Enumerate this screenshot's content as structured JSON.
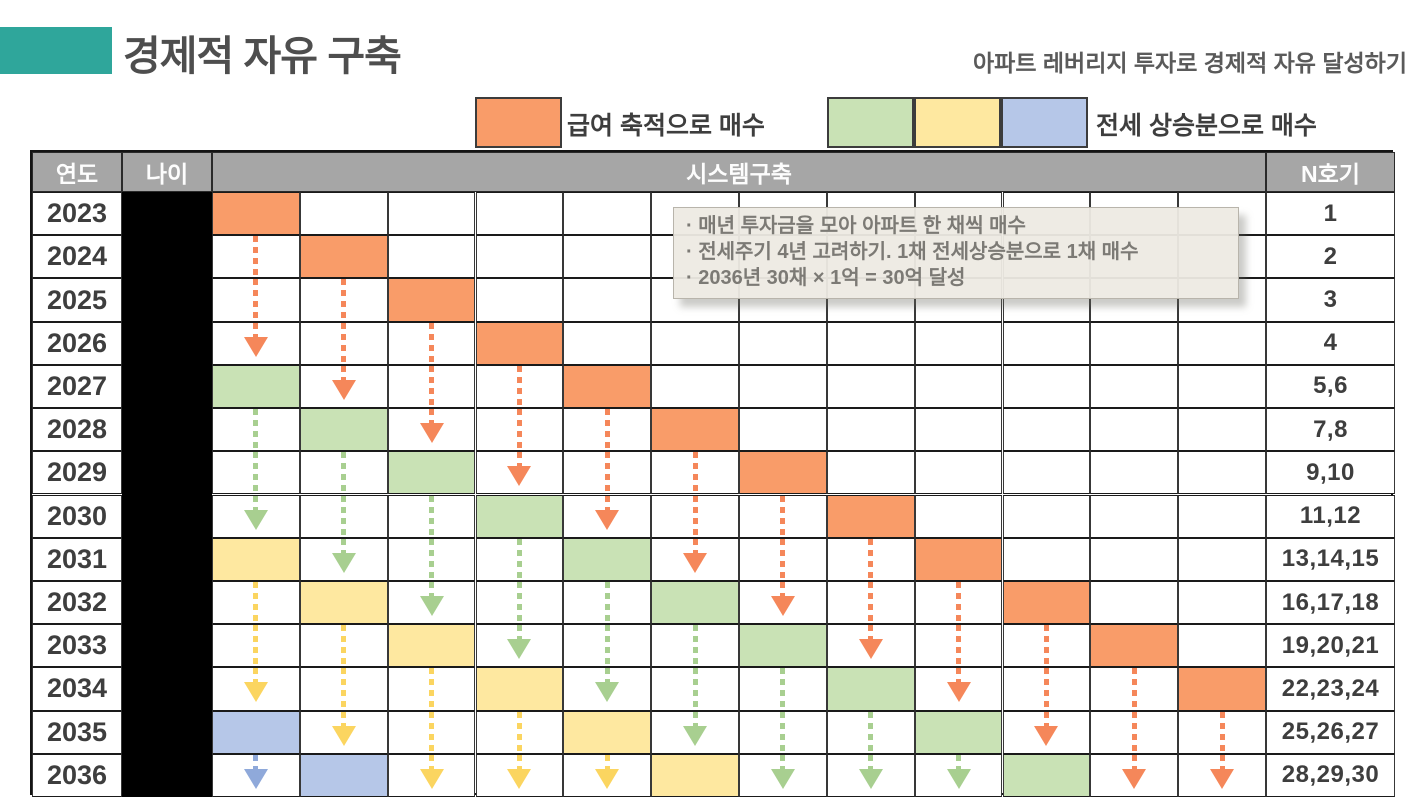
{
  "header": {
    "title": "경제적 자유 구축",
    "subtitle": "아파트 레버리지 투자로 경제적 자유 달성하기",
    "accent_color": "#2FA69B"
  },
  "legend": {
    "salary_label": "급여 축적으로 매수",
    "salary_color": "orange",
    "jeonse_label": "전세 상승분으로 매수",
    "jeonse_colors": [
      "green",
      "yellow",
      "blue"
    ]
  },
  "colors": {
    "orange": {
      "fill": "#F99C69",
      "arrow": "#F5875A"
    },
    "green": {
      "fill": "#C9E2B5",
      "arrow": "#A8CF90"
    },
    "yellow": {
      "fill": "#FEE8A0",
      "arrow": "#FBD560"
    },
    "blue": {
      "fill": "#B6C7E8",
      "arrow": "#8FA9DA"
    }
  },
  "annotation": {
    "lines": [
      "· 매년 투자금을 모아 아파트 한 채씩 매수",
      "· 전세주기 4년 고려하기. 1채 전세상승분으로 1채 매수",
      "· 2036년 30채 × 1억 = 30억 달성"
    ]
  },
  "table": {
    "headers": {
      "year": "연도",
      "age": "나이",
      "system": "시스템구축",
      "units": "N호기"
    },
    "num_system_columns": 12,
    "age_column_blacked_out": true,
    "rows": [
      {
        "year": "2023",
        "units": "1",
        "cells": [
          {
            "col": 0,
            "c": "orange"
          }
        ],
        "arrows": []
      },
      {
        "year": "2024",
        "units": "2",
        "cells": [
          {
            "col": 1,
            "c": "orange"
          }
        ],
        "arrows": [
          {
            "col": 0,
            "c": "orange",
            "head": false
          }
        ]
      },
      {
        "year": "2025",
        "units": "3",
        "cells": [
          {
            "col": 2,
            "c": "orange"
          }
        ],
        "arrows": [
          {
            "col": 0,
            "c": "orange",
            "head": false
          },
          {
            "col": 1,
            "c": "orange",
            "head": false
          }
        ]
      },
      {
        "year": "2026",
        "units": "4",
        "cells": [
          {
            "col": 3,
            "c": "orange"
          }
        ],
        "arrows": [
          {
            "col": 0,
            "c": "orange",
            "head": true
          },
          {
            "col": 1,
            "c": "orange",
            "head": false
          },
          {
            "col": 2,
            "c": "orange",
            "head": false
          }
        ]
      },
      {
        "year": "2027",
        "units": "5,6",
        "cells": [
          {
            "col": 0,
            "c": "green"
          },
          {
            "col": 4,
            "c": "orange"
          }
        ],
        "arrows": [
          {
            "col": 1,
            "c": "orange",
            "head": true
          },
          {
            "col": 2,
            "c": "orange",
            "head": false
          },
          {
            "col": 3,
            "c": "orange",
            "head": false
          }
        ]
      },
      {
        "year": "2028",
        "units": "7,8",
        "cells": [
          {
            "col": 1,
            "c": "green"
          },
          {
            "col": 5,
            "c": "orange"
          }
        ],
        "arrows": [
          {
            "col": 0,
            "c": "green",
            "head": false
          },
          {
            "col": 2,
            "c": "orange",
            "head": true
          },
          {
            "col": 3,
            "c": "orange",
            "head": false
          },
          {
            "col": 4,
            "c": "orange",
            "head": false
          }
        ]
      },
      {
        "year": "2029",
        "units": "9,10",
        "cells": [
          {
            "col": 2,
            "c": "green"
          },
          {
            "col": 6,
            "c": "orange"
          }
        ],
        "arrows": [
          {
            "col": 0,
            "c": "green",
            "head": false
          },
          {
            "col": 1,
            "c": "green",
            "head": false
          },
          {
            "col": 3,
            "c": "orange",
            "head": true
          },
          {
            "col": 4,
            "c": "orange",
            "head": false
          },
          {
            "col": 5,
            "c": "orange",
            "head": false
          }
        ]
      },
      {
        "year": "2030",
        "units": "11,12",
        "cells": [
          {
            "col": 3,
            "c": "green"
          },
          {
            "col": 7,
            "c": "orange"
          }
        ],
        "arrows": [
          {
            "col": 0,
            "c": "green",
            "head": true
          },
          {
            "col": 1,
            "c": "green",
            "head": false
          },
          {
            "col": 2,
            "c": "green",
            "head": false
          },
          {
            "col": 4,
            "c": "orange",
            "head": true
          },
          {
            "col": 5,
            "c": "orange",
            "head": false
          },
          {
            "col": 6,
            "c": "orange",
            "head": false
          }
        ]
      },
      {
        "year": "2031",
        "units": "13,14,15",
        "cells": [
          {
            "col": 0,
            "c": "yellow"
          },
          {
            "col": 4,
            "c": "green"
          },
          {
            "col": 8,
            "c": "orange"
          }
        ],
        "arrows": [
          {
            "col": 1,
            "c": "green",
            "head": true
          },
          {
            "col": 2,
            "c": "green",
            "head": false
          },
          {
            "col": 3,
            "c": "green",
            "head": false
          },
          {
            "col": 5,
            "c": "orange",
            "head": true
          },
          {
            "col": 6,
            "c": "orange",
            "head": false
          },
          {
            "col": 7,
            "c": "orange",
            "head": false
          }
        ]
      },
      {
        "year": "2032",
        "units": "16,17,18",
        "cells": [
          {
            "col": 1,
            "c": "yellow"
          },
          {
            "col": 5,
            "c": "green"
          },
          {
            "col": 9,
            "c": "orange"
          }
        ],
        "arrows": [
          {
            "col": 0,
            "c": "yellow",
            "head": false
          },
          {
            "col": 2,
            "c": "green",
            "head": true
          },
          {
            "col": 3,
            "c": "green",
            "head": false
          },
          {
            "col": 4,
            "c": "green",
            "head": false
          },
          {
            "col": 6,
            "c": "orange",
            "head": true
          },
          {
            "col": 7,
            "c": "orange",
            "head": false
          },
          {
            "col": 8,
            "c": "orange",
            "head": false
          }
        ]
      },
      {
        "year": "2033",
        "units": "19,20,21",
        "cells": [
          {
            "col": 2,
            "c": "yellow"
          },
          {
            "col": 6,
            "c": "green"
          },
          {
            "col": 10,
            "c": "orange"
          }
        ],
        "arrows": [
          {
            "col": 0,
            "c": "yellow",
            "head": false
          },
          {
            "col": 1,
            "c": "yellow",
            "head": false
          },
          {
            "col": 3,
            "c": "green",
            "head": true
          },
          {
            "col": 4,
            "c": "green",
            "head": false
          },
          {
            "col": 5,
            "c": "green",
            "head": false
          },
          {
            "col": 7,
            "c": "orange",
            "head": true
          },
          {
            "col": 8,
            "c": "orange",
            "head": false
          },
          {
            "col": 9,
            "c": "orange",
            "head": false
          }
        ]
      },
      {
        "year": "2034",
        "units": "22,23,24",
        "cells": [
          {
            "col": 3,
            "c": "yellow"
          },
          {
            "col": 7,
            "c": "green"
          },
          {
            "col": 11,
            "c": "orange"
          }
        ],
        "arrows": [
          {
            "col": 0,
            "c": "yellow",
            "head": true
          },
          {
            "col": 1,
            "c": "yellow",
            "head": false
          },
          {
            "col": 2,
            "c": "yellow",
            "head": false
          },
          {
            "col": 4,
            "c": "green",
            "head": true
          },
          {
            "col": 5,
            "c": "green",
            "head": false
          },
          {
            "col": 6,
            "c": "green",
            "head": false
          },
          {
            "col": 8,
            "c": "orange",
            "head": true
          },
          {
            "col": 9,
            "c": "orange",
            "head": false
          },
          {
            "col": 10,
            "c": "orange",
            "head": false
          }
        ]
      },
      {
        "year": "2035",
        "units": "25,26,27",
        "cells": [
          {
            "col": 0,
            "c": "blue"
          },
          {
            "col": 4,
            "c": "yellow"
          },
          {
            "col": 8,
            "c": "green"
          }
        ],
        "arrows": [
          {
            "col": 1,
            "c": "yellow",
            "head": true
          },
          {
            "col": 2,
            "c": "yellow",
            "head": false
          },
          {
            "col": 3,
            "c": "yellow",
            "head": false
          },
          {
            "col": 5,
            "c": "green",
            "head": true
          },
          {
            "col": 6,
            "c": "green",
            "head": false
          },
          {
            "col": 7,
            "c": "green",
            "head": false
          },
          {
            "col": 9,
            "c": "orange",
            "head": true
          },
          {
            "col": 10,
            "c": "orange",
            "head": false
          },
          {
            "col": 11,
            "c": "orange",
            "head": false
          }
        ]
      },
      {
        "year": "2036",
        "units": "28,29,30",
        "cells": [
          {
            "col": 1,
            "c": "blue"
          },
          {
            "col": 5,
            "c": "yellow"
          },
          {
            "col": 9,
            "c": "green"
          }
        ],
        "arrows": [
          {
            "col": 0,
            "c": "blue",
            "head": true
          },
          {
            "col": 2,
            "c": "yellow",
            "head": true
          },
          {
            "col": 3,
            "c": "yellow",
            "head": true
          },
          {
            "col": 4,
            "c": "yellow",
            "head": true
          },
          {
            "col": 6,
            "c": "green",
            "head": true
          },
          {
            "col": 7,
            "c": "green",
            "head": true
          },
          {
            "col": 8,
            "c": "green",
            "head": true
          },
          {
            "col": 10,
            "c": "orange",
            "head": true
          },
          {
            "col": 11,
            "c": "orange",
            "head": true
          }
        ]
      }
    ]
  }
}
